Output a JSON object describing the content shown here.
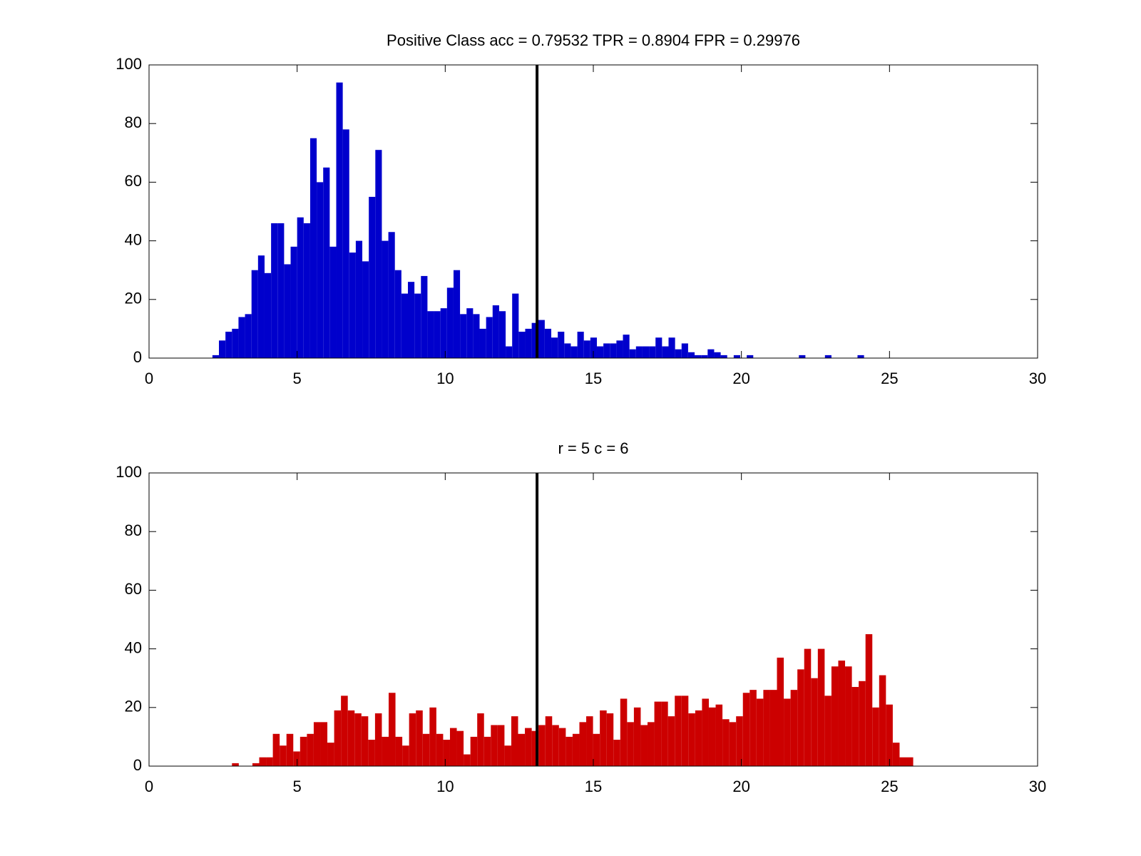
{
  "chart_data": [
    {
      "type": "histogram",
      "title": "Positive Class  acc = 0.79532 TPR = 0.8904 FPR = 0.29976",
      "color": "#0000cc",
      "bins": [
        2.14,
        2.36,
        2.58,
        2.8,
        3.02,
        3.24,
        3.46,
        3.68,
        3.9,
        4.12,
        4.34,
        4.56,
        4.78,
        5,
        5.22,
        5.44,
        5.66,
        5.88,
        6.1,
        6.32,
        6.54,
        6.76,
        6.98,
        7.2,
        7.42,
        7.64,
        7.86,
        8.08,
        8.3,
        8.52,
        8.74,
        8.96,
        9.18,
        9.4,
        9.62,
        9.84,
        10.06,
        10.28,
        10.5,
        10.72,
        10.94,
        11.16,
        11.38,
        11.6,
        11.82,
        12.04,
        12.26,
        12.48,
        12.7,
        12.92,
        13.14,
        13.36,
        13.58,
        13.8,
        14.02,
        14.24,
        14.46,
        14.68,
        14.9,
        15.12,
        15.34,
        15.56,
        15.78,
        16,
        16.22,
        16.44,
        16.66,
        16.88,
        17.1,
        17.32,
        17.54,
        17.76,
        17.98,
        18.2,
        18.42,
        18.64,
        18.86,
        19.08,
        19.3,
        19.52,
        19.74,
        19.96,
        20.18,
        20.4,
        20.62,
        20.84,
        21.06,
        21.28,
        21.5,
        21.72,
        21.94,
        22.16,
        22.38,
        22.6,
        22.82,
        23.04,
        23.26,
        23.48,
        23.7,
        23.92,
        24.14
      ],
      "values": [
        1,
        6,
        9,
        10,
        14,
        15,
        30,
        35,
        29,
        46,
        46,
        32,
        38,
        48,
        46,
        75,
        60,
        65,
        38,
        94,
        78,
        36,
        40,
        33,
        55,
        71,
        40,
        43,
        30,
        22,
        26,
        22,
        28,
        16,
        16,
        17,
        24,
        30,
        15,
        17,
        15,
        10,
        14,
        18,
        16,
        4,
        22,
        9,
        10,
        12,
        13,
        10,
        7,
        9,
        5,
        4,
        9,
        6,
        7,
        4,
        5,
        5,
        6,
        8,
        3,
        4,
        4,
        4,
        7,
        4,
        7,
        3,
        5,
        2,
        1,
        1,
        3,
        2,
        1,
        0,
        1,
        0,
        1,
        0,
        0,
        0,
        0,
        0,
        0,
        0,
        1,
        0,
        0,
        0,
        1,
        0,
        0,
        0,
        0,
        1
      ],
      "threshold": 13.1,
      "xlim": [
        0,
        30
      ],
      "ylim": [
        0,
        100
      ],
      "xticks": [
        0,
        5,
        10,
        15,
        20,
        25,
        30
      ],
      "yticks": [
        0,
        20,
        40,
        60,
        80,
        100
      ]
    },
    {
      "type": "histogram",
      "title": "r = 5 c = 6",
      "color": "#cc0000",
      "bins": [
        2.8,
        3.03,
        3.26,
        3.49,
        3.72,
        3.95,
        4.18,
        4.41,
        4.64,
        4.87,
        5.1,
        5.33,
        5.56,
        5.79,
        6.02,
        6.25,
        6.48,
        6.71,
        6.94,
        7.17,
        7.4,
        7.63,
        7.86,
        8.09,
        8.32,
        8.55,
        8.78,
        9.01,
        9.24,
        9.47,
        9.7,
        9.93,
        10.16,
        10.39,
        10.62,
        10.85,
        11.08,
        11.31,
        11.54,
        11.77,
        12,
        12.23,
        12.46,
        12.69,
        12.92,
        13.15,
        13.38,
        13.61,
        13.84,
        14.07,
        14.3,
        14.53,
        14.76,
        14.99,
        15.22,
        15.45,
        15.68,
        15.91,
        16.14,
        16.37,
        16.6,
        16.83,
        17.06,
        17.29,
        17.52,
        17.75,
        17.98,
        18.21,
        18.44,
        18.67,
        18.9,
        19.13,
        19.36,
        19.59,
        19.82,
        20.05,
        20.28,
        20.51,
        20.74,
        20.97,
        21.2,
        21.43,
        21.66,
        21.89,
        22.12,
        22.35,
        22.58,
        22.81,
        23.04,
        23.27,
        23.5,
        23.73,
        23.96,
        24.19,
        24.42,
        24.65,
        24.88,
        25.11,
        25.34,
        25.57,
        25.8
      ],
      "values": [
        1,
        0,
        0,
        1,
        3,
        3,
        11,
        7,
        11,
        5,
        10,
        11,
        15,
        15,
        8,
        19,
        24,
        19,
        18,
        17,
        9,
        18,
        10,
        25,
        10,
        7,
        18,
        19,
        11,
        20,
        11,
        9,
        13,
        12,
        4,
        10,
        18,
        10,
        14,
        14,
        7,
        17,
        11,
        13,
        12,
        14,
        17,
        14,
        13,
        10,
        11,
        15,
        17,
        11,
        19,
        18,
        9,
        23,
        15,
        20,
        14,
        15,
        22,
        22,
        17,
        24,
        24,
        18,
        19,
        23,
        20,
        21,
        16,
        15,
        17,
        25,
        26,
        23,
        26,
        26,
        37,
        23,
        26,
        33,
        40,
        30,
        40,
        24,
        34,
        36,
        34,
        27,
        29,
        45,
        20,
        31,
        21,
        8,
        3,
        3
      ],
      "threshold": 13.1,
      "xlim": [
        0,
        30
      ],
      "ylim": [
        0,
        100
      ],
      "xticks": [
        0,
        5,
        10,
        15,
        20,
        25,
        30
      ],
      "yticks": [
        0,
        20,
        40,
        60,
        80,
        100
      ]
    }
  ]
}
